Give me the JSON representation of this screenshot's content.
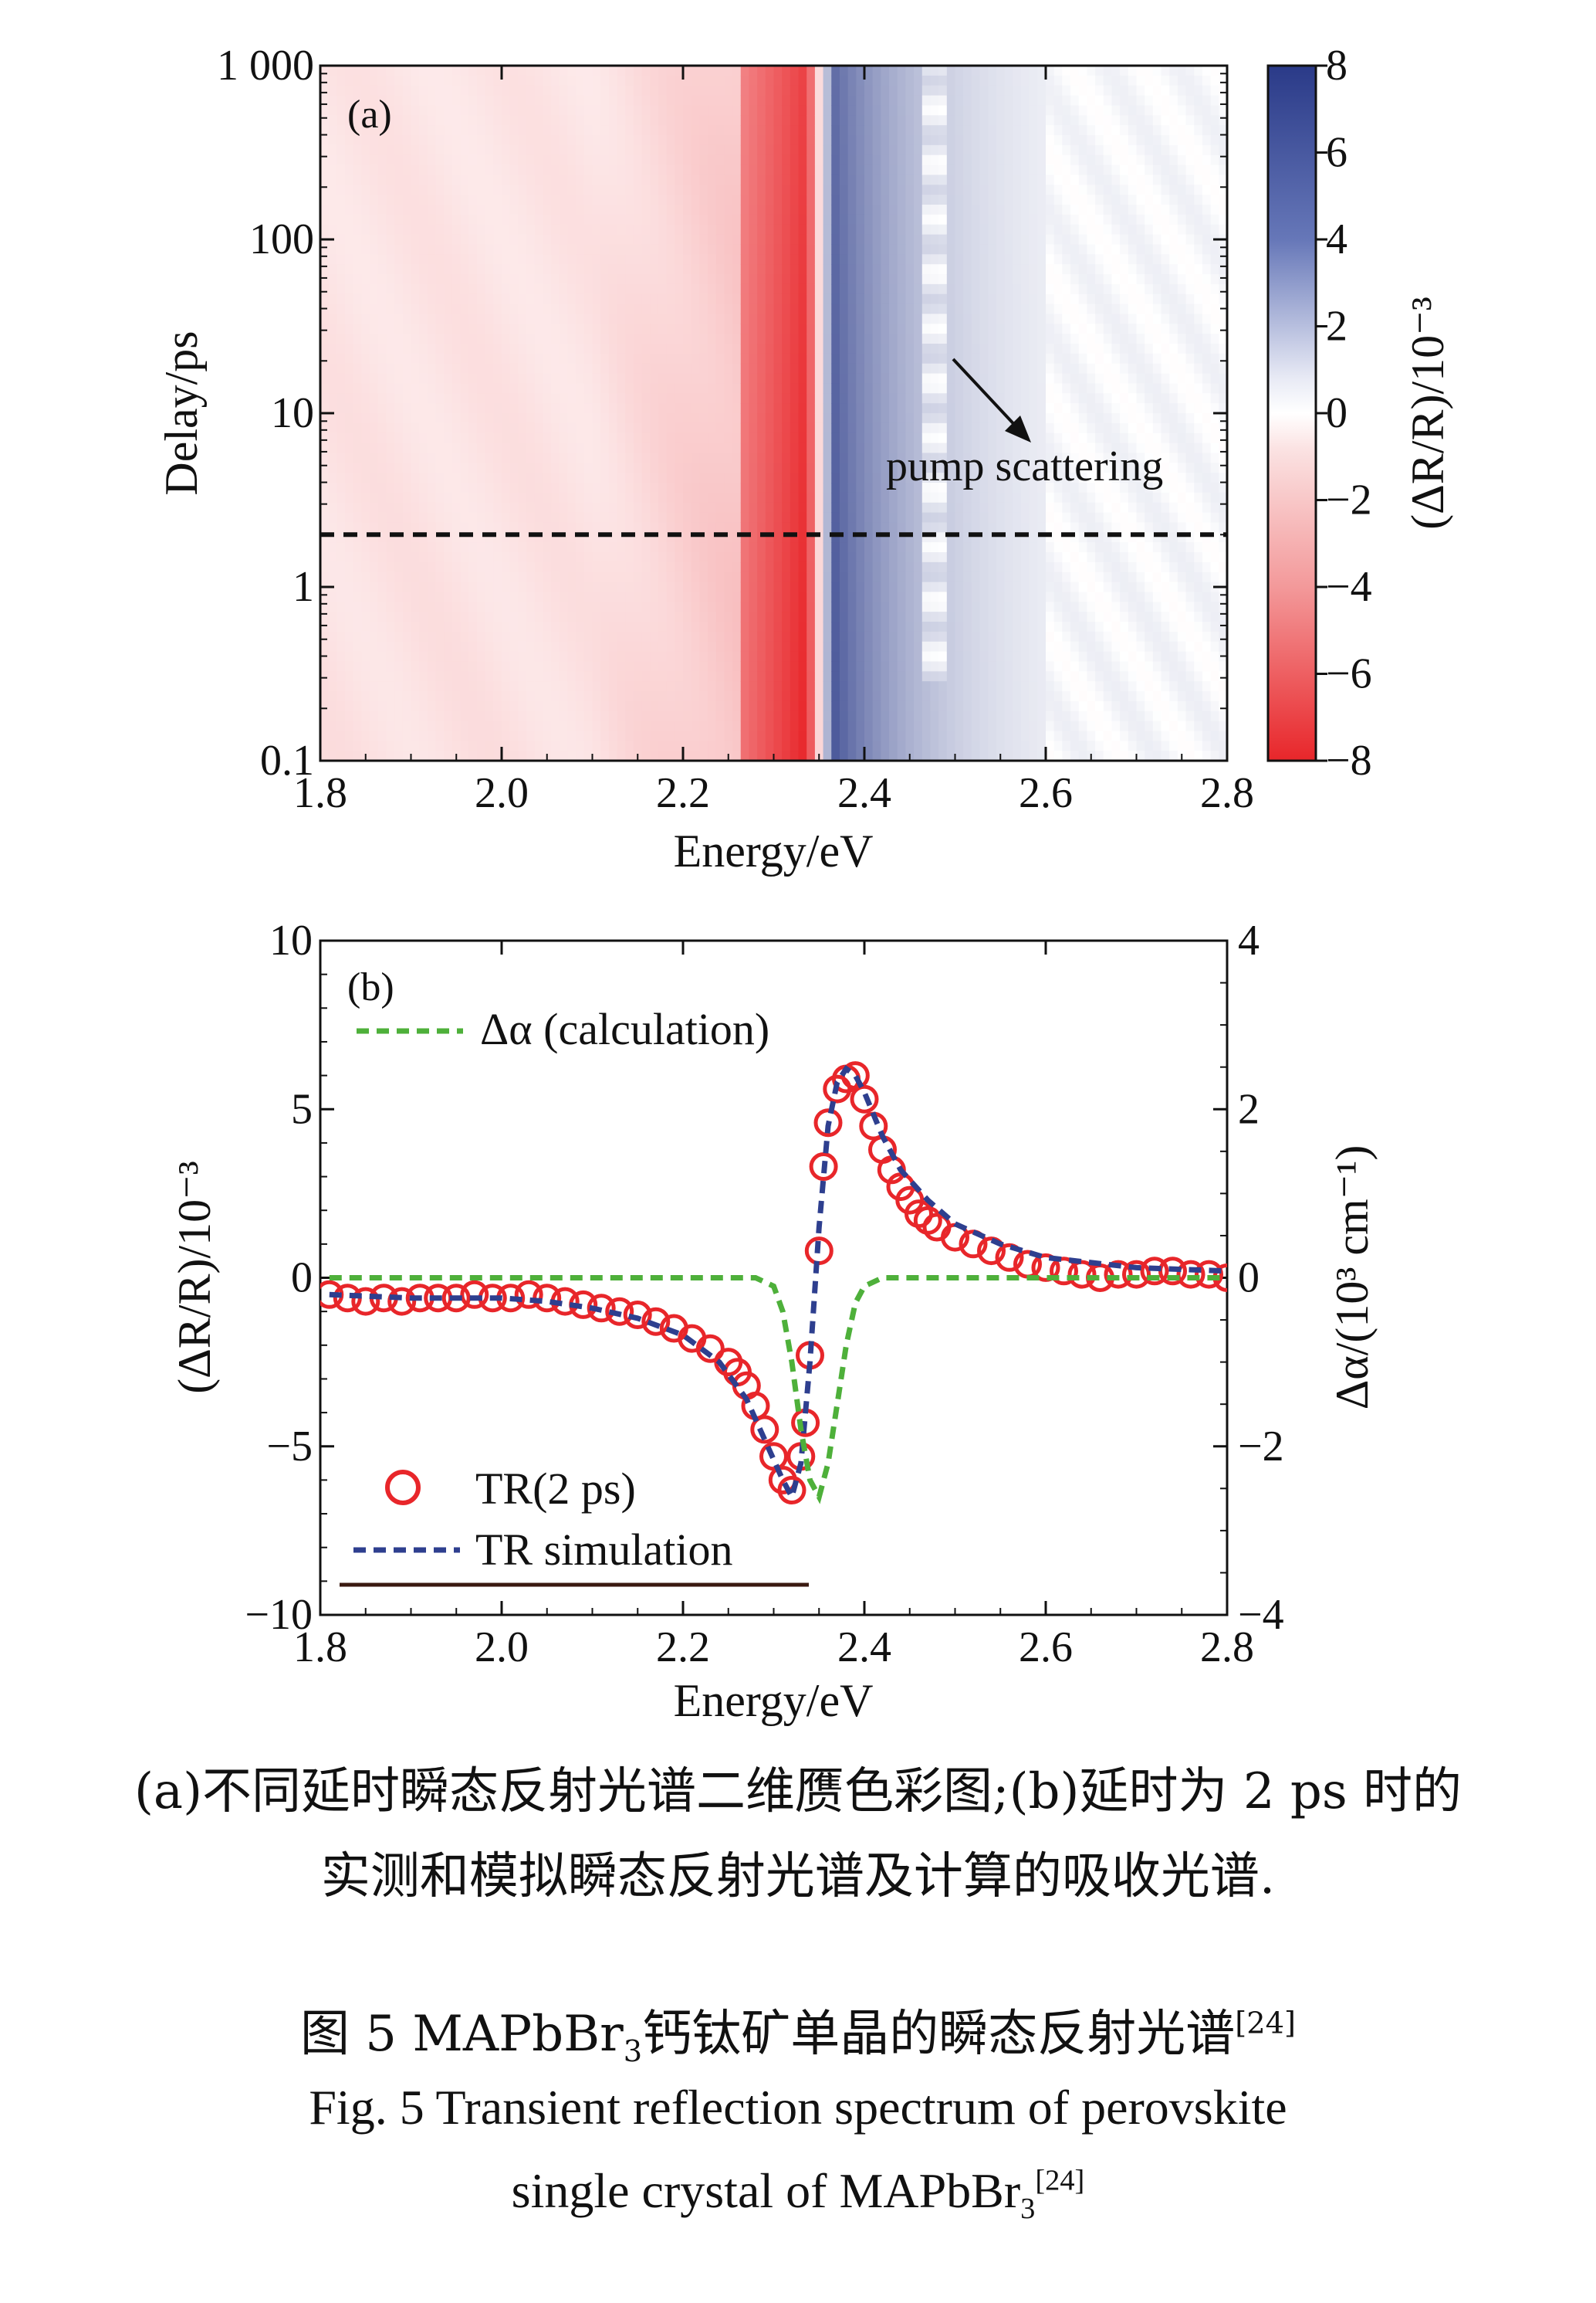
{
  "chart_data": [
    {
      "type": "heatmap",
      "panel_label": "(a)",
      "xlabel": "Energy/eV",
      "ylabel": "Delay/ps",
      "xlim": [
        1.8,
        2.8
      ],
      "ylim": [
        0.1,
        1000
      ],
      "yscale": "log",
      "x_ticks": [
        "1.8",
        "2.0",
        "2.2",
        "2.4",
        "2.6",
        "2.8"
      ],
      "x_tick_values": [
        1.8,
        2.0,
        2.2,
        2.4,
        2.6,
        2.8
      ],
      "y_ticks": [
        "0.1",
        "1",
        "10",
        "100",
        "1 000"
      ],
      "y_tick_values": [
        0.1,
        1,
        10,
        100,
        1000
      ],
      "colorbar": {
        "label": "(ΔR/R)/10⁻³",
        "range": [
          -8,
          8
        ],
        "ticks": [
          "8",
          "6",
          "4",
          "2",
          "0",
          "−2",
          "−4",
          "−6",
          "−8"
        ],
        "tick_values": [
          8,
          6,
          4,
          2,
          0,
          -2,
          -4,
          -6,
          -8
        ],
        "positive_color": "#2e3f8f",
        "zero_color": "#ffffff",
        "negative_color": "#e8262a"
      },
      "annotation": "pump scattering",
      "dashed_line_delay_ps": 2,
      "grid": false
    },
    {
      "type": "line",
      "panel_label": "(b)",
      "xlabel": "Energy/eV",
      "ylabel": "(ΔR/R)/10⁻³",
      "ylabel_right": "Δα/(10³ cm⁻¹)",
      "xlim": [
        1.8,
        2.8
      ],
      "ylim": [
        -10,
        10
      ],
      "ylim_right": [
        -4,
        4
      ],
      "x_ticks": [
        "1.8",
        "2.0",
        "2.2",
        "2.4",
        "2.6",
        "2.8"
      ],
      "x_tick_values": [
        1.8,
        2.0,
        2.2,
        2.4,
        2.6,
        2.8
      ],
      "y_ticks": [
        "10",
        "5",
        "0",
        "−5",
        "−10"
      ],
      "y_tick_values": [
        10,
        5,
        0,
        -5,
        -10
      ],
      "y_ticks_right": [
        "4",
        "2",
        "0",
        "−2",
        "−4"
      ],
      "y_tick_values_right": [
        4,
        2,
        0,
        -2,
        -4
      ],
      "legend_top_left": "Δα (calculation)",
      "legend_bottom_left": [
        "TR(2 ps)",
        "TR simulation"
      ],
      "series": [
        {
          "name": "TR(2 ps)",
          "style": "circles",
          "color": "#e8262a",
          "axis": "left",
          "x": [
            1.81,
            1.83,
            1.85,
            1.87,
            1.89,
            1.91,
            1.93,
            1.95,
            1.97,
            1.99,
            2.01,
            2.03,
            2.05,
            2.07,
            2.09,
            2.11,
            2.13,
            2.15,
            2.17,
            2.19,
            2.21,
            2.23,
            2.25,
            2.26,
            2.27,
            2.28,
            2.29,
            2.3,
            2.31,
            2.32,
            2.33,
            2.335,
            2.34,
            2.35,
            2.355,
            2.36,
            2.37,
            2.38,
            2.39,
            2.4,
            2.41,
            2.42,
            2.43,
            2.44,
            2.45,
            2.46,
            2.47,
            2.48,
            2.5,
            2.52,
            2.54,
            2.56,
            2.58,
            2.6,
            2.62,
            2.64,
            2.66,
            2.68,
            2.7,
            2.72,
            2.74,
            2.76,
            2.78,
            2.8
          ],
          "y": [
            -0.5,
            -0.6,
            -0.7,
            -0.6,
            -0.7,
            -0.6,
            -0.6,
            -0.6,
            -0.5,
            -0.6,
            -0.6,
            -0.5,
            -0.6,
            -0.7,
            -0.8,
            -0.9,
            -1.0,
            -1.1,
            -1.3,
            -1.5,
            -1.8,
            -2.1,
            -2.5,
            -2.8,
            -3.2,
            -3.8,
            -4.5,
            -5.3,
            -6.0,
            -6.3,
            -5.3,
            -4.3,
            -2.3,
            0.8,
            3.3,
            4.6,
            5.6,
            5.9,
            6.0,
            5.3,
            4.5,
            3.8,
            3.2,
            2.7,
            2.3,
            1.9,
            1.7,
            1.5,
            1.2,
            1.0,
            0.8,
            0.6,
            0.4,
            0.3,
            0.2,
            0.1,
            0.0,
            0.1,
            0.1,
            0.2,
            0.2,
            0.1,
            0.1,
            0.0
          ]
        },
        {
          "name": "TR simulation",
          "style": "dashed",
          "color": "#2e3f8f",
          "axis": "left",
          "x": [
            1.81,
            1.9,
            2.0,
            2.05,
            2.1,
            2.15,
            2.2,
            2.24,
            2.27,
            2.29,
            2.31,
            2.32,
            2.33,
            2.34,
            2.35,
            2.36,
            2.37,
            2.38,
            2.39,
            2.4,
            2.42,
            2.44,
            2.47,
            2.5,
            2.55,
            2.6,
            2.7,
            2.8
          ],
          "y": [
            -0.5,
            -0.6,
            -0.6,
            -0.7,
            -0.9,
            -1.2,
            -1.7,
            -2.5,
            -3.6,
            -4.8,
            -6.0,
            -6.5,
            -5.5,
            -2.5,
            1.5,
            4.5,
            5.8,
            6.2,
            6.0,
            5.5,
            4.2,
            3.2,
            2.3,
            1.6,
            1.0,
            0.6,
            0.3,
            0.2
          ]
        },
        {
          "name": "Δα (calculation)",
          "style": "dashed",
          "color": "#4eb03a",
          "axis": "right",
          "x": [
            1.81,
            2.0,
            2.2,
            2.28,
            2.3,
            2.31,
            2.32,
            2.33,
            2.34,
            2.35,
            2.36,
            2.37,
            2.38,
            2.39,
            2.4,
            2.42,
            2.5,
            2.8
          ],
          "y": [
            0,
            0,
            0,
            0,
            -0.1,
            -0.4,
            -1.0,
            -1.8,
            -2.4,
            -2.6,
            -2.2,
            -1.5,
            -0.8,
            -0.3,
            -0.1,
            0,
            0,
            0
          ]
        }
      ],
      "baseline_bar": {
        "color": "#3a1a10"
      },
      "grid": false
    }
  ],
  "caption": {
    "line1": "(a)不同延时瞬态反射光谱二维赝色彩图;(b)延时为 2 ps 时的",
    "line2": "实测和模拟瞬态反射光谱及计算的吸收光谱.",
    "title_cn_prefix": "图 5 MAPbBr",
    "title_cn_sub": "3",
    "title_cn_suffix": "钙钛矿单晶的瞬态反射光谱",
    "title_cn_ref": "[24]",
    "title_en_line1": "Fig. 5 Transient reflection spectrum of perovskite",
    "title_en_line2_prefix": "single crystal of MAPbBr",
    "title_en_line2_sub": "3",
    "title_en_line2_ref": "[24]"
  }
}
